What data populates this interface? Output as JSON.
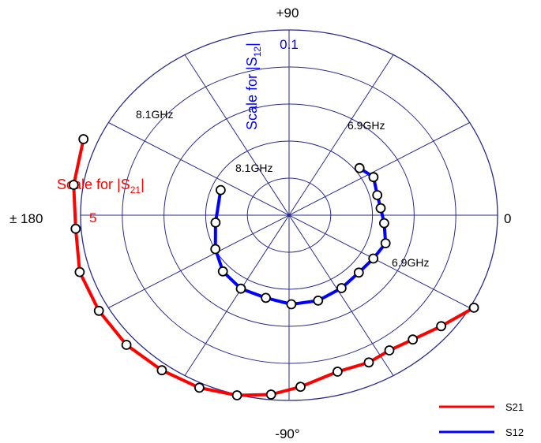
{
  "chart_data": {
    "type": "polar",
    "angle_labels": {
      "top": "+90",
      "right": "0",
      "bottom": "-90°",
      "left": "± 180"
    },
    "radial_rings": 5,
    "spoke_step_deg": 30,
    "s21_scale": {
      "label": "Scale for |S",
      "sub": "21",
      "tail": "|",
      "value": "5",
      "rmax": 5,
      "color": "#ff0000"
    },
    "s12_scale": {
      "label": "Scale for |S",
      "sub": "12",
      "tail": "|",
      "value": "0.1",
      "rmax": 0.1,
      "color": "#0000ff"
    },
    "series": [
      {
        "name": "S21",
        "color": "#ff0000",
        "start_label": "6.9GHz",
        "end_label": "8.1GHz",
        "points": [
          [
            5.09,
            -29.4
          ],
          [
            4.72,
            -39.4
          ],
          [
            4.48,
            -48.5
          ],
          [
            4.37,
            -56.6
          ],
          [
            4.41,
            -64.3
          ],
          [
            4.38,
            -74.6
          ],
          [
            4.64,
            -86.6
          ],
          [
            4.86,
            -95.1
          ],
          [
            5.02,
            -104.4
          ],
          [
            5.13,
            -114.8
          ],
          [
            5.18,
            -126.1
          ],
          [
            5.24,
            -138.1
          ],
          [
            5.24,
            -150.5
          ],
          [
            5.25,
            -163.0
          ],
          [
            5.13,
            -175.9
          ],
          [
            5.23,
            171.0
          ],
          [
            5.34,
            157.4
          ]
        ]
      },
      {
        "name": "S12",
        "color": "#0000ff",
        "start_label": "6.9GHz",
        "end_label": "8.1GHz",
        "points": [
          [
            0.0423,
            37.0
          ],
          [
            0.0454,
            26.9
          ],
          [
            0.0437,
            14.4
          ],
          [
            0.0441,
            4.9
          ],
          [
            0.0458,
            -5.4
          ],
          [
            0.0487,
            -18.1
          ],
          [
            0.0467,
            -30.1
          ],
          [
            0.0456,
            -42.8
          ],
          [
            0.0467,
            -57.4
          ],
          [
            0.0482,
            -73.2
          ],
          [
            0.0481,
            -88.7
          ],
          [
            0.046,
            -104.0
          ],
          [
            0.0459,
            -120.2
          ],
          [
            0.0439,
            -136.3
          ],
          [
            0.0398,
            -152.6
          ],
          [
            0.0355,
            -173.5
          ],
          [
            0.0355,
            157.5
          ]
        ]
      }
    ],
    "legend": [
      {
        "name": "S21",
        "color": "#ff0000"
      },
      {
        "name": "S12",
        "color": "#0000ff"
      }
    ],
    "legend_position": "bottom-right",
    "grid": true
  }
}
